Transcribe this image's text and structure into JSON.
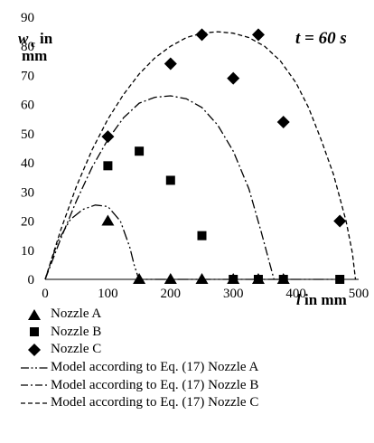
{
  "chart_data": {
    "type": "scatter",
    "title": "",
    "annotation": "t = 60 s",
    "ylabel_main": "w",
    "ylabel_sub": "c",
    "ylabel_unit_a": "in",
    "ylabel_unit_b": "mm",
    "xlabel_var": "l",
    "xlabel_unit": "in mm",
    "xlim": [
      0,
      500
    ],
    "ylim": [
      0,
      90
    ],
    "x_ticks": [
      0,
      100,
      200,
      300,
      400,
      500
    ],
    "y_ticks": [
      0,
      10,
      20,
      30,
      40,
      50,
      60,
      70,
      80,
      90
    ],
    "grid": false,
    "legend_position": "bottom",
    "series": [
      {
        "name": "Nozzle A",
        "kind": "points",
        "marker": "triangle",
        "x": [
          100,
          150,
          200,
          250,
          300,
          340,
          380
        ],
        "y": [
          20,
          0,
          0,
          0,
          0,
          0,
          0
        ]
      },
      {
        "name": "Nozzle B",
        "kind": "points",
        "marker": "square",
        "x": [
          100,
          150,
          200,
          250,
          300,
          340,
          380,
          470
        ],
        "y": [
          39,
          44,
          34,
          15,
          0,
          0,
          0,
          0
        ]
      },
      {
        "name": "Nozzle C",
        "kind": "points",
        "marker": "diamond",
        "x": [
          100,
          200,
          250,
          300,
          340,
          380,
          470
        ],
        "y": [
          49,
          74,
          84,
          69,
          84,
          54,
          20
        ]
      },
      {
        "name": "Model according to Eq. (17) Nozzle A",
        "kind": "line",
        "dash": "12,3,2,3,2,3",
        "x": [
          0,
          20,
          40,
          60,
          80,
          100,
          120,
          135,
          142,
          148,
          150,
          200,
          300,
          400,
          470
        ],
        "y": [
          0,
          13,
          20.5,
          24,
          25.5,
          25,
          20,
          11,
          5,
          1,
          0,
          0,
          0,
          0,
          0
        ]
      },
      {
        "name": "Model according to Eq. (17) Nozzle B",
        "kind": "line",
        "dash": "10,3,2,3",
        "x": [
          0,
          25,
          50,
          75,
          100,
          125,
          150,
          175,
          200,
          225,
          250,
          275,
          300,
          325,
          345,
          360,
          365
        ],
        "y": [
          0,
          14,
          27,
          38.5,
          48,
          55.5,
          60.5,
          62.5,
          63,
          62,
          59,
          53,
          44,
          31,
          16,
          4,
          0
        ]
      },
      {
        "name": "Model according to Eq. (17) Nozzle C",
        "kind": "line",
        "dash": "5,3",
        "x": [
          0,
          25,
          50,
          75,
          100,
          125,
          150,
          175,
          200,
          225,
          250,
          275,
          300,
          325,
          350,
          375,
          400,
          420,
          440,
          460,
          480,
          490,
          495
        ],
        "y": [
          0,
          17,
          32,
          44.5,
          55,
          63.5,
          70.5,
          76,
          80,
          83,
          84.5,
          85,
          84.5,
          83,
          80,
          75,
          67.5,
          59,
          48,
          36,
          20,
          9,
          0
        ]
      }
    ]
  }
}
